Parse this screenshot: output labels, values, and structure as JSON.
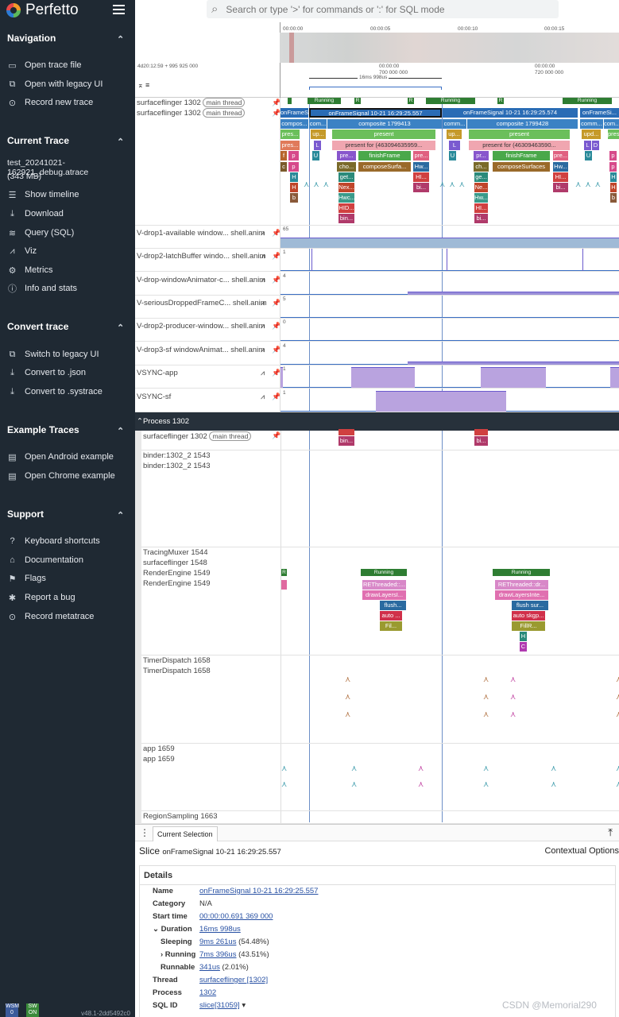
{
  "app": {
    "title": "Perfetto",
    "version": "v48.1-2dd5492c0",
    "wasm": "WSM",
    "wasm_state": "0",
    "sw": "SW",
    "sw_state": "ON"
  },
  "search": {
    "placeholder": "Search or type '>' for commands or ':' for SQL mode"
  },
  "sidebar": {
    "navigation": {
      "title": "Navigation",
      "items": [
        {
          "label": "Open trace file",
          "icon": "folder-icon"
        },
        {
          "label": "Open with legacy UI",
          "icon": "window-icon"
        },
        {
          "label": "Record new trace",
          "icon": "toggle-icon"
        }
      ]
    },
    "current_trace": {
      "title": "Current Trace",
      "file": "test_20241021-162921_debug.atrace",
      "size": "(343 MB)",
      "items": [
        {
          "label": "Show timeline",
          "icon": "timeline-icon"
        },
        {
          "label": "Download",
          "icon": "download-icon"
        },
        {
          "label": "Query (SQL)",
          "icon": "database-icon"
        },
        {
          "label": "Viz",
          "icon": "chart-icon"
        },
        {
          "label": "Metrics",
          "icon": "settings-icon"
        },
        {
          "label": "Info and stats",
          "icon": "info-icon"
        }
      ]
    },
    "convert": {
      "title": "Convert trace",
      "items": [
        {
          "label": "Switch to legacy UI",
          "icon": "window-icon"
        },
        {
          "label": "Convert to .json",
          "icon": "download-icon"
        },
        {
          "label": "Convert to .systrace",
          "icon": "download-icon"
        }
      ]
    },
    "examples": {
      "title": "Example Traces",
      "items": [
        {
          "label": "Open Android example",
          "icon": "doc-icon"
        },
        {
          "label": "Open Chrome example",
          "icon": "doc-icon"
        }
      ]
    },
    "support": {
      "title": "Support",
      "items": [
        {
          "label": "Keyboard shortcuts",
          "icon": "help-icon"
        },
        {
          "label": "Documentation",
          "icon": "school-icon"
        },
        {
          "label": "Flags",
          "icon": "flag-icon"
        },
        {
          "label": "Report a bug",
          "icon": "bug-icon"
        },
        {
          "label": "Record metatrace",
          "icon": "toggle-icon"
        }
      ]
    }
  },
  "timeline": {
    "overview_ticks": [
      "00:00:00",
      "00:00:05",
      "00:00:10",
      "00:00:15"
    ],
    "origin": "4d20:12:59 + 995 925 000",
    "ticks": [
      "00:00:00\n700 000 000",
      "00:00:00\n720 000 000"
    ],
    "selection_span": "16ms 998us"
  },
  "tracks": {
    "sf_main": "surfaceflinger 1302",
    "main_thread": "main thread",
    "counters": [
      {
        "name": "V-drop1-available window...",
        "proc": "shell.anim",
        "max": "65"
      },
      {
        "name": "V-drop2-latchBuffer windo...",
        "proc": "shell.anim",
        "max": "1"
      },
      {
        "name": "V-drop-windowAnimator-c...",
        "proc": "shell.anim",
        "max": "4"
      },
      {
        "name": "V-seriousDroppedFrameC...",
        "proc": "shell.anim",
        "max": "5"
      },
      {
        "name": "V-drop2-producer-window...",
        "proc": "shell.anim",
        "max": "0"
      },
      {
        "name": "V-drop3-sf windowAnimat...",
        "proc": "shell.anim",
        "max": "4"
      },
      {
        "name": "VSYNC-app",
        "proc": "",
        "max": "1"
      },
      {
        "name": "VSYNC-sf",
        "proc": "",
        "max": "1"
      }
    ],
    "process_header": "Process 1302",
    "binder": [
      "binder:1302_2 1543",
      "binder:1302_2 1543"
    ],
    "render": [
      "TracingMuxer 1544",
      "surfaceflinger 1548",
      "RenderEngine 1549",
      "RenderEngine 1549"
    ],
    "timer": [
      "TimerDispatch 1658",
      "TimerDispatch 1658"
    ],
    "app": [
      "app 1659",
      "app 1659"
    ],
    "region": "RegionSampling 1663"
  },
  "slices": {
    "running": "Running",
    "r": "R",
    "on_frame_1": "onFrameSignal 10-21 16:29:25.557",
    "on_frame_2": "onFrameSignal 10-21 16:29:25.574",
    "on_frame_3": "onFrameSi...",
    "composite_1": "composite 1799413",
    "composite_2": "composite 1799428",
    "compos": "compos...",
    "comm": "comm...",
    "com": "com...",
    "present": "present",
    "present_for_1": "present for (463094635959...",
    "present_for_2": "present for (46309463590...",
    "finish": "finishFrame",
    "compose": "composeSurfa...",
    "compose2": "composeSurfaces",
    "pres": "pres...",
    "up": "up...",
    "upd": "upd...",
    "pre": "pre...",
    "pr": "pr...",
    "cho": "cho...",
    "ch": "ch...",
    "get": "get...",
    "ge": "ge...",
    "nex": "Nex...",
    "ne": "Ne...",
    "hwc": "Hwc...",
    "hw": "Hw...",
    "hid": "HID...",
    "hi": "HI...",
    "bin": "bin...",
    "bi": "bi...",
    "f": "f",
    "c": "c",
    "p": "p",
    "H": "H",
    "h": "h",
    "b": "b",
    "L": "L",
    "U": "U",
    "D": "D",
    "C": "C",
    "rethreaded_1": "REThreaded::...",
    "rethreaded_2": "REThreaded::dr...",
    "drawlayers_1": "drawLayersI...",
    "drawlayers_2": "drawLayersInte...",
    "flush_1": "flush...",
    "flush_2": "flush sur...",
    "auto_1": "auto ...",
    "auto_2": "auto skgp...",
    "fill_1": "Fil...",
    "fill_2": "FillR..."
  },
  "bottom": {
    "tab": "Current Selection",
    "kind": "Slice",
    "name": "onFrameSignal 10-21 16:29:25.557",
    "contextual": "Contextual Options",
    "details_title": "Details",
    "rows": [
      {
        "k": "Name",
        "v": "onFrameSignal 10-21 16:29:25.557"
      },
      {
        "k": "Category",
        "v": "N/A"
      },
      {
        "k": "Start time",
        "v": "00:00:00.691 369 000"
      },
      {
        "k": "Duration",
        "v": "16ms 998us"
      },
      {
        "k": "Sleeping",
        "v": "9ms 261us",
        "p": "(54.48%)"
      },
      {
        "k": "Running",
        "v": "7ms 396us",
        "p": "(43.51%)"
      },
      {
        "k": "Runnable",
        "v": "341us",
        "p": "(2.01%)"
      },
      {
        "k": "Thread",
        "v": "surfaceflinger [1302]"
      },
      {
        "k": "Process",
        "v": "1302"
      },
      {
        "k": "SQL ID",
        "v": "slice[31059]"
      }
    ]
  },
  "watermark": "CSDN @Memorial290",
  "colors": {
    "sidebar": "#1f2933",
    "running": "#2e7d32",
    "composite": "#3b82c4",
    "counter": "#9fbad6",
    "vsync": "#b9a3df",
    "cursor": "#6c8fc7"
  }
}
